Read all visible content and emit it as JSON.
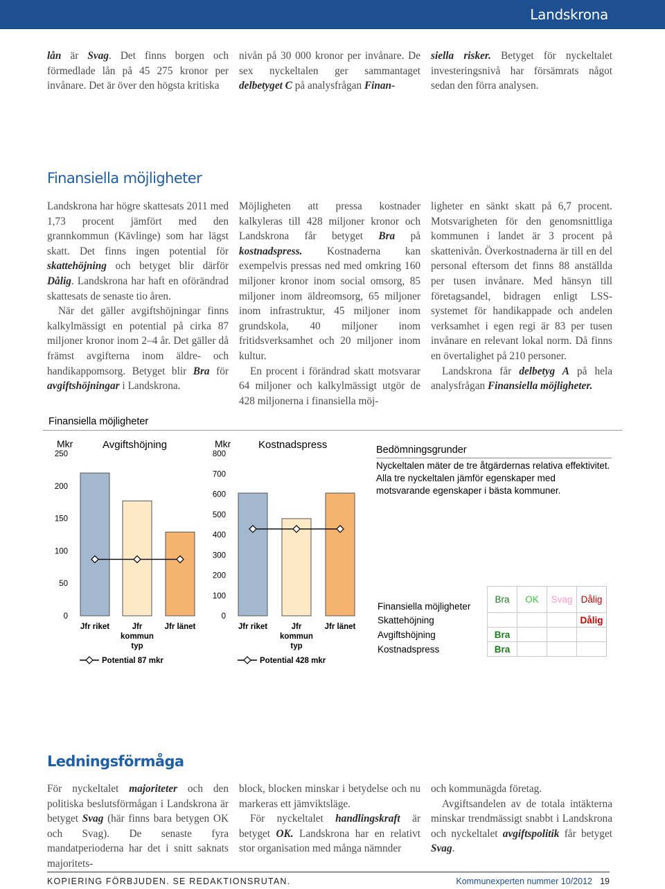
{
  "header": {
    "region": "Landskrona"
  },
  "intro": {
    "columns": [
      [
        [
          "",
          {
            "text": "lån",
            "style": "bi"
          },
          " är ",
          {
            "text": "Svag",
            "style": "bi"
          },
          ". Det finns borgen och förmedlade lån på 45 275 kronor per invånare. Det är över den högsta kritiska"
        ]
      ],
      [
        [
          "nivån på 30 000 kronor per invånare. De sex nyckeltalen ger sammantaget ",
          {
            "text": "delbetyget C",
            "style": "bi"
          },
          " på analysfrågan ",
          {
            "text": "Finan-",
            "style": "bi"
          }
        ]
      ],
      [
        [
          {
            "text": "siella risker.",
            "style": "bi"
          },
          " Betyget för nyckeltalet investeringsnivå har försämrats något sedan den förra analysen."
        ]
      ]
    ]
  },
  "section1": {
    "title": "Finansiella möjligheter",
    "columns": [
      [
        [
          "Landskrona har högre skattesats 2011 med 1,73 procent jämfört med den grannkommun (Kävlinge) som har lägst skatt. Det finns ingen potential för ",
          {
            "text": "skattehöjning",
            "style": "bi"
          },
          " och betyget blir därför ",
          {
            "text": "Dålig",
            "style": "bi"
          },
          ". Landskrona har haft en oförändrad skattesats de senaste tio åren."
        ],
        [
          "När det gäller avgiftshöjningar finns kalkylmässigt en potential på cirka 87 miljoner kronor inom 2–4 år. Det gäller då främst avgifterna inom äldre- och handikappomsorg. Betyget blir ",
          {
            "text": "Bra",
            "style": "bi"
          },
          " för ",
          {
            "text": "avgiftshöjningar",
            "style": "bi"
          },
          " i Landskrona."
        ]
      ],
      [
        [
          "Möjligheten att pressa kostnader kalkyleras till 428 miljoner kronor och Landskrona får betyget ",
          {
            "text": "Bra",
            "style": "bi"
          },
          " på ",
          {
            "text": "kostnadspress.",
            "style": "bi"
          },
          " Kostnaderna kan exempelvis pressas ned med omkring 160 miljoner kronor inom social omsorg, 85 miljoner inom äldreomsorg, 65 miljoner inom infrastruktur, 45 miljoner inom grundskola, 40 miljoner inom fritidsverksamhet och 20 miljoner inom kultur."
        ],
        [
          "En procent i förändrad skatt motsvarar 64 miljoner och kalkylmässigt utgör de 428 miljonerna i finansiella möj-"
        ]
      ],
      [
        [
          "ligheter en sänkt skatt på 6,7 procent. Motsvarigheten för den genomsnittliga kommunen i landet är 3 procent på skattenivån. Överkostnaderna är till en del personal eftersom det finns 88 anställda per tusen invånare. Med hänsyn till företagsandel, bidragen enligt LSS-systemet för handikappade och andelen verksamhet i egen regi är 83 per tusen invånare en relevant lokal norm. Då finns en övertalighet på 210 personer."
        ],
        [
          "Landskrona får ",
          {
            "text": "delbetyg A",
            "style": "bi"
          },
          " på hela analysfrågan ",
          {
            "text": "Finansiella möjligheter.",
            "style": "bi"
          }
        ]
      ]
    ]
  },
  "figure": {
    "title": "Finansiella möjligheter",
    "criteria": {
      "title": "Bedömningsgrunder",
      "text": "Nyckeltalen mäter de tre åtgärdernas relativa effektivitet. Alla tre nyckeltalen jämför egenskaper med motsvarande egenskaper i bästa kommuner."
    },
    "table": {
      "header": [
        "Finansiella möjligheter",
        "Bra",
        "OK",
        "Svag",
        "Dålig"
      ],
      "rows": [
        [
          "Skattehöjning",
          null,
          null,
          null,
          "Dålig"
        ],
        [
          "Avgiftshöjning",
          "Bra",
          null,
          null,
          null
        ],
        [
          "Kostnadspress",
          "Bra",
          null,
          null,
          null
        ]
      ],
      "grade_colors": [
        "#1b7d1b",
        "#33cc33",
        "#ff99cc",
        "#cc0000"
      ]
    }
  },
  "chart_data": [
    {
      "type": "bar",
      "title": "Avgiftshöjning",
      "y_label": "Mkr",
      "categories": [
        "Jfr riket",
        "Jfr kommun typ",
        "Jfr länet"
      ],
      "values": [
        220,
        177,
        129
      ],
      "colors": [
        "#a3b8cf",
        "#fde9c6",
        "#f4b36e"
      ],
      "ylim": [
        0,
        250
      ],
      "yticks": [
        0,
        50,
        100,
        150,
        200,
        250
      ],
      "series": [
        {
          "name": "Potential 87 mkr",
          "color": "#000000",
          "values": [
            87,
            87,
            87
          ]
        }
      ]
    },
    {
      "type": "bar",
      "title": "Kostnadspress",
      "y_label": "Mkr",
      "categories": [
        "Jfr riket",
        "Jfr kommun typ",
        "Jfr länet"
      ],
      "values": [
        605,
        479,
        605
      ],
      "colors": [
        "#a3b8cf",
        "#fde9c6",
        "#f4b36e"
      ],
      "ylim": [
        0,
        800
      ],
      "yticks": [
        0,
        100,
        200,
        300,
        400,
        500,
        600,
        700,
        800
      ],
      "series": [
        {
          "name": "Potential 428 mkr",
          "color": "#000000",
          "values": [
            428,
            428,
            428
          ]
        }
      ]
    }
  ],
  "section2": {
    "title": "Ledningsförmåga",
    "columns": [
      [
        [
          "För nyckeltalet ",
          {
            "text": "majoriteter",
            "style": "bi"
          },
          " och den politiska beslutsförmågan i Landskrona är betyget ",
          {
            "text": "Svag",
            "style": "bi"
          },
          " (här finns bara betygen OK och Svag). De senaste fyra mandatperioderna har det i snitt saknats majoritets-"
        ]
      ],
      [
        [
          "block, blocken minskar i betydelse och nu markeras ett jämviktsläge."
        ],
        [
          "För nyckeltalet ",
          {
            "text": "handlingskraft",
            "style": "bi"
          },
          " är betyget ",
          {
            "text": "OK.",
            "style": "bi"
          },
          " Landskrona har en relativt stor organisation med många nämnder"
        ]
      ],
      [
        [
          "och kommunägda företag."
        ],
        [
          "Avgiftsandelen av de totala intäkterna minskar trendmässigt snabbt i Landskrona och nyckeltalet ",
          {
            "text": "avgiftspolitik",
            "style": "bi"
          },
          " får betyget ",
          {
            "text": "Svag",
            "style": "bi"
          },
          "."
        ]
      ]
    ]
  },
  "footer": {
    "notice": "KOPIERING FÖRBJUDEN. SE REDAKTIONSRUTAN.",
    "publication": "Kommunexperten nummer 10/2012",
    "page": "19"
  }
}
